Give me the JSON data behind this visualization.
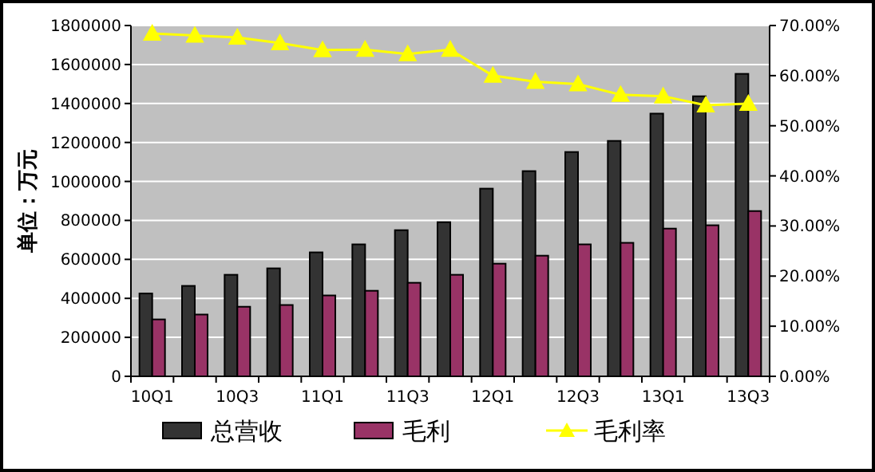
{
  "chart_data": {
    "type": "bar",
    "ylabel": "单位：万元",
    "categories": [
      "10Q1",
      null,
      "10Q3",
      null,
      "11Q1",
      null,
      "11Q3",
      null,
      "12Q1",
      null,
      "12Q3",
      null,
      "13Q1",
      null,
      "13Q3"
    ],
    "series": [
      {
        "name": "总营收",
        "color": "#333333",
        "values": [
          425000,
          464000,
          521000,
          554000,
          636000,
          677000,
          750000,
          791000,
          963000,
          1053000,
          1151000,
          1208000,
          1348000,
          1437000,
          1552000
        ]
      },
      {
        "name": "毛利",
        "color": "#993366",
        "values": [
          292000,
          317000,
          357000,
          366000,
          415000,
          439000,
          480000,
          521000,
          578000,
          619000,
          677000,
          685000,
          758000,
          775000,
          848000
        ]
      },
      {
        "name": "毛利率",
        "type": "line",
        "axis": "y2",
        "color": "#ffff00",
        "marker": "triangle",
        "values": [
          68.4,
          68.0,
          67.6,
          66.5,
          65.1,
          65.2,
          64.3,
          65.2,
          60.0,
          58.8,
          58.3,
          56.2,
          55.9,
          54.1,
          54.4
        ]
      }
    ],
    "ylim": [
      0,
      1800000
    ],
    "yticks": [
      0,
      200000,
      400000,
      600000,
      800000,
      1000000,
      1200000,
      1400000,
      1600000,
      1800000
    ],
    "y2lim": [
      0,
      70
    ],
    "y2ticks": [
      {
        "value": 0,
        "label": "0.00%"
      },
      {
        "value": 10,
        "label": "10.00%"
      },
      {
        "value": 20,
        "label": "20.00%"
      },
      {
        "value": 30,
        "label": "30.00%"
      },
      {
        "value": 40,
        "label": "40.00%"
      },
      {
        "value": 50,
        "label": "50.00%"
      },
      {
        "value": 60,
        "label": "60.00%"
      },
      {
        "value": 70,
        "label": "70.00%"
      }
    ],
    "grid": "y",
    "legend": "bottom"
  }
}
